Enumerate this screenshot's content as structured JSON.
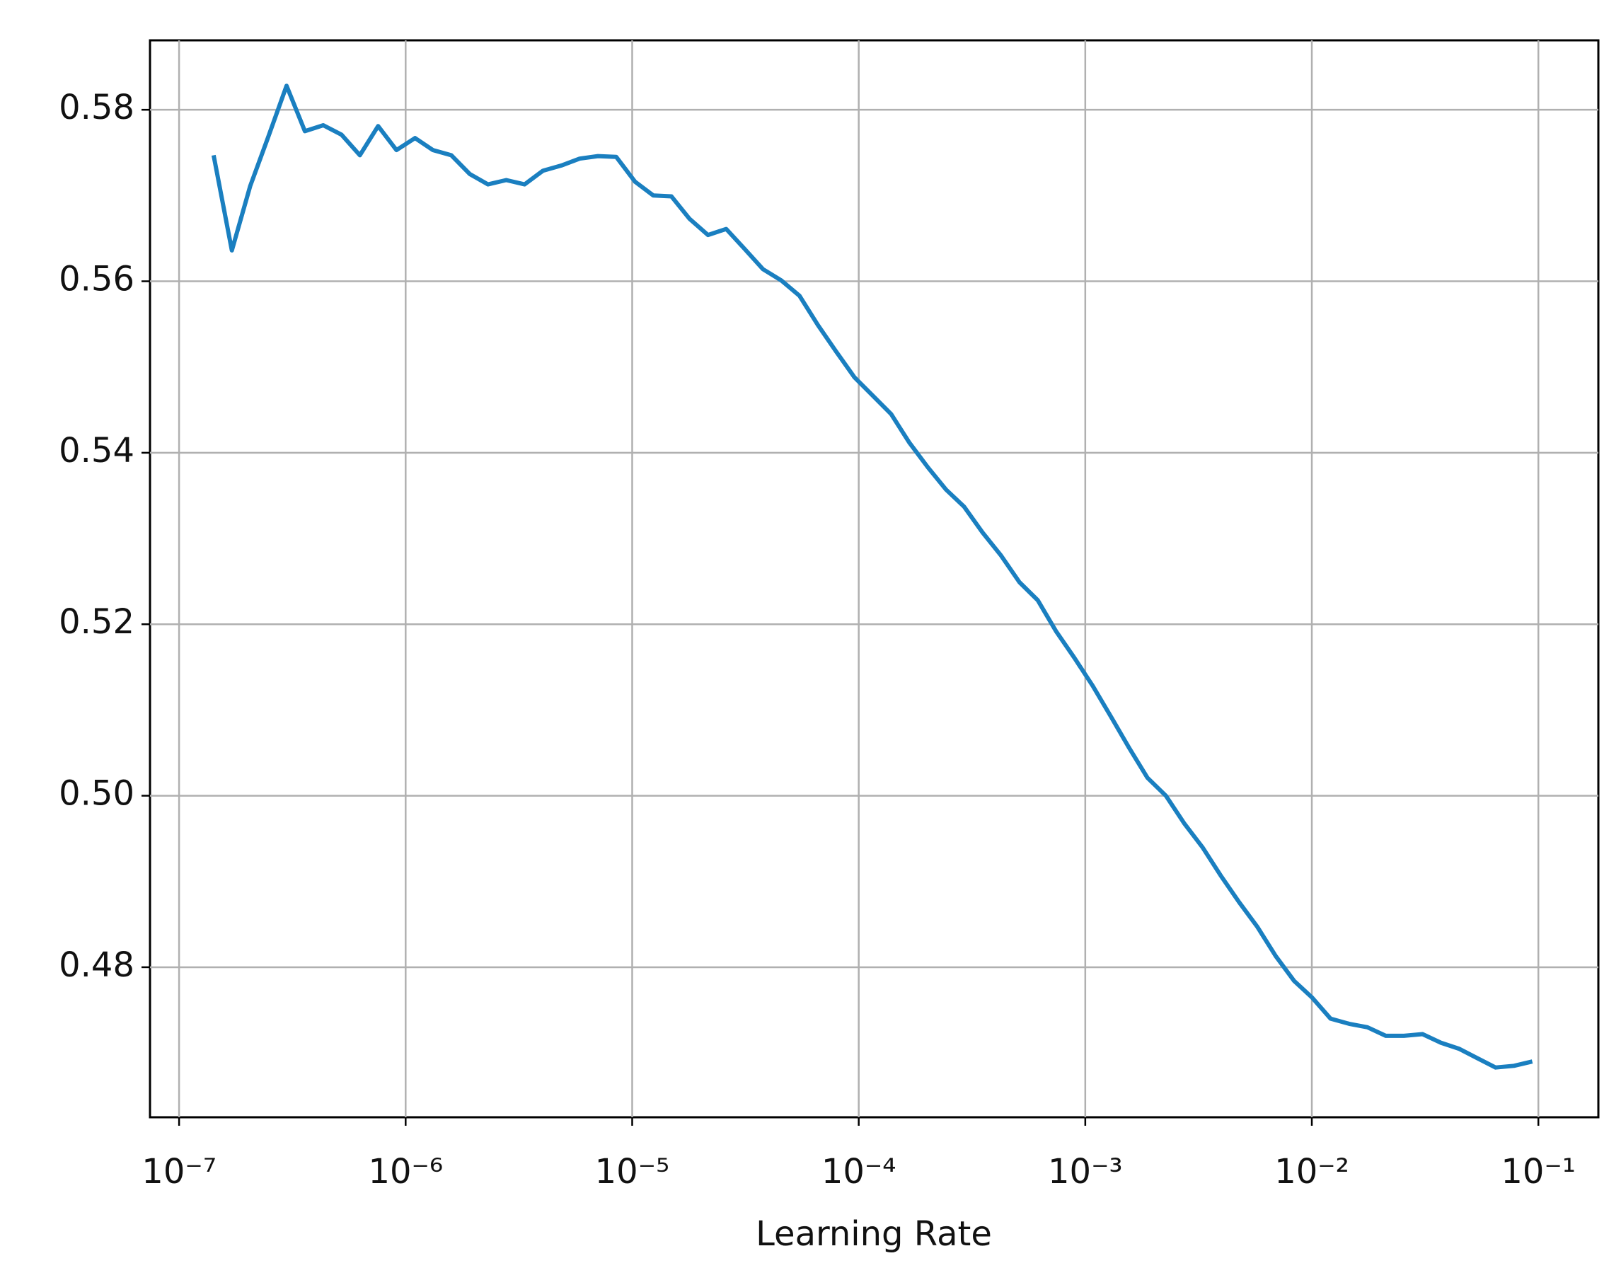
{
  "chart_data": {
    "type": "line",
    "xlabel": "Learning Rate",
    "log_x": true,
    "grid": true,
    "xlim": [
      7.44e-08,
      0.184
    ],
    "ylim": [
      0.4625,
      0.5881
    ],
    "xticks": [
      {
        "value": 1e-07,
        "label": "10⁻⁷"
      },
      {
        "value": 1e-06,
        "label": "10⁻⁶"
      },
      {
        "value": 1e-05,
        "label": "10⁻⁵"
      },
      {
        "value": 0.0001,
        "label": "10⁻⁴"
      },
      {
        "value": 0.001,
        "label": "10⁻³"
      },
      {
        "value": 0.01,
        "label": "10⁻²"
      },
      {
        "value": 0.1,
        "label": "10⁻¹"
      }
    ],
    "yticks": [
      {
        "value": 0.48,
        "label": "0.48"
      },
      {
        "value": 0.5,
        "label": "0.50"
      },
      {
        "value": 0.52,
        "label": "0.52"
      },
      {
        "value": 0.54,
        "label": "0.54"
      },
      {
        "value": 0.56,
        "label": "0.56"
      },
      {
        "value": 0.58,
        "label": "0.58"
      }
    ],
    "x": [
      1.42e-07,
      1.71e-07,
      2.06e-07,
      2.48e-07,
      2.98e-07,
      3.59e-07,
      4.33e-07,
      5.21e-07,
      6.28e-07,
      7.56e-07,
      9.11e-07,
      1.1e-06,
      1.32e-06,
      1.59e-06,
      1.92e-06,
      2.31e-06,
      2.78e-06,
      3.35e-06,
      4.04e-06,
      4.87e-06,
      5.86e-06,
      7.06e-06,
      8.51e-06,
      1.03e-05,
      1.24e-05,
      1.49e-05,
      1.79e-05,
      2.16e-05,
      2.6e-05,
      3.13e-05,
      3.78e-05,
      4.55e-05,
      5.48e-05,
      6.6e-05,
      7.95e-05,
      9.57e-05,
      0.000115,
      0.000139,
      0.000167,
      0.000202,
      0.000243,
      0.000292,
      0.000352,
      0.000425,
      0.000512,
      0.000617,
      0.000742,
      0.000894,
      0.00108,
      0.0013,
      0.00156,
      0.00188,
      0.00227,
      0.00273,
      0.00329,
      0.00396,
      0.00477,
      0.00575,
      0.00693,
      0.00835,
      0.01,
      0.0121,
      0.0146,
      0.0176,
      0.0212,
      0.0255,
      0.0308,
      0.0371,
      0.0446,
      0.0537,
      0.0647,
      0.078,
      0.094
    ],
    "series": [
      {
        "color": "#1a7fc0",
        "values": [
          0.5747,
          0.5636,
          0.5711,
          0.5769,
          0.5828,
          0.5775,
          0.5782,
          0.5771,
          0.5747,
          0.5781,
          0.5753,
          0.5767,
          0.5753,
          0.5747,
          0.5725,
          0.5713,
          0.5718,
          0.5713,
          0.5729,
          0.5735,
          0.5743,
          0.5746,
          0.5745,
          0.5716,
          0.57,
          0.5699,
          0.5673,
          0.5654,
          0.5661,
          0.5638,
          0.5614,
          0.5601,
          0.5583,
          0.5549,
          0.5518,
          0.5488,
          0.5467,
          0.5445,
          0.5412,
          0.5383,
          0.5357,
          0.5337,
          0.5307,
          0.528,
          0.5249,
          0.5228,
          0.5192,
          0.5161,
          0.5128,
          0.5092,
          0.5056,
          0.5021,
          0.5,
          0.4968,
          0.494,
          0.4907,
          0.4876,
          0.4847,
          0.4813,
          0.4784,
          0.4765,
          0.474,
          0.4734,
          0.473,
          0.472,
          0.472,
          0.4722,
          0.4712,
          0.4705,
          0.4694,
          0.4683,
          0.4685,
          0.469
        ]
      }
    ]
  }
}
